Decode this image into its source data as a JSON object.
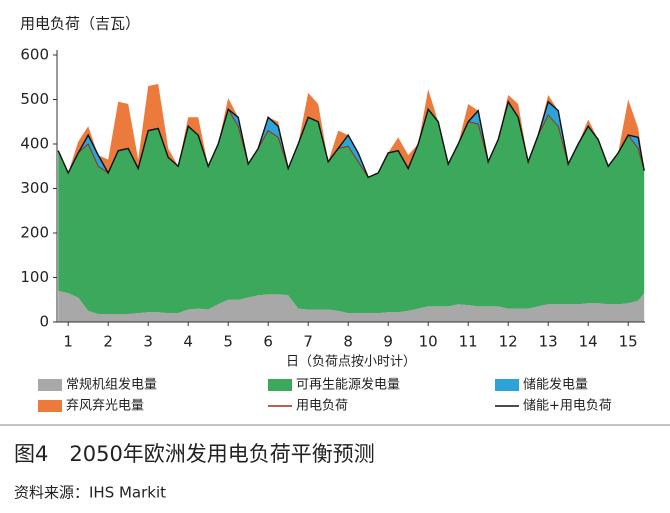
{
  "chart_data": {
    "type": "stacked_area",
    "ylabel": "用电负荷（吉瓦）",
    "xlabel": "日（负荷点按小时计）",
    "caption": "图4　2050年欧洲发用电负荷平衡预测",
    "source": "资料来源：IHS Markit",
    "xlim": [
      0.72,
      15.42
    ],
    "xticks": [
      1,
      2,
      3,
      4,
      5,
      6,
      7,
      8,
      9,
      10,
      11,
      12,
      13,
      14,
      15
    ],
    "ylim": [
      0,
      600
    ],
    "yticks": [
      0,
      100,
      200,
      300,
      400,
      500,
      600
    ],
    "x": [
      0.75,
      1,
      1.25,
      1.5,
      1.75,
      2,
      2.25,
      2.5,
      2.75,
      3,
      3.25,
      3.5,
      3.75,
      4,
      4.25,
      4.5,
      4.75,
      5,
      5.25,
      5.5,
      5.75,
      6,
      6.25,
      6.5,
      6.75,
      7,
      7.25,
      7.5,
      7.75,
      8,
      8.25,
      8.5,
      8.75,
      9,
      9.25,
      9.5,
      9.75,
      10,
      10.25,
      10.5,
      10.75,
      11,
      11.25,
      11.5,
      11.75,
      12,
      12.25,
      12.5,
      12.75,
      13,
      13.25,
      13.5,
      13.75,
      14,
      14.25,
      14.5,
      14.75,
      15,
      15.25,
      15.4
    ],
    "series": [
      {
        "name": "常规机组发电量",
        "kind": "area",
        "color": "#a8a8a8",
        "values": [
          70,
          65,
          55,
          25,
          18,
          18,
          18,
          18,
          20,
          22,
          22,
          20,
          20,
          28,
          30,
          28,
          40,
          50,
          50,
          55,
          60,
          62,
          62,
          60,
          30,
          28,
          28,
          28,
          25,
          20,
          20,
          20,
          20,
          22,
          22,
          25,
          30,
          35,
          35,
          35,
          40,
          38,
          35,
          35,
          35,
          30,
          30,
          30,
          35,
          40,
          40,
          40,
          40,
          42,
          42,
          40,
          40,
          42,
          48,
          65
        ]
      },
      {
        "name": "可再生能源发电量",
        "kind": "area",
        "color": "#3ca85c",
        "values": [
          315,
          270,
          325,
          375,
          332,
          317,
          367,
          372,
          325,
          408,
          413,
          350,
          330,
          412,
          390,
          322,
          360,
          428,
          390,
          300,
          330,
          368,
          353,
          285,
          370,
          432,
          422,
          332,
          365,
          375,
          340,
          305,
          315,
          358,
          363,
          320,
          370,
          443,
          415,
          320,
          360,
          412,
          410,
          325,
          375,
          465,
          430,
          330,
          385,
          425,
          400,
          315,
          360,
          398,
          368,
          310,
          340,
          378,
          342,
          275
        ]
      },
      {
        "name": "储能发电量",
        "kind": "area",
        "color": "#2ea3d8",
        "values": [
          0,
          0,
          0,
          20,
          25,
          0,
          0,
          0,
          0,
          0,
          0,
          0,
          0,
          0,
          0,
          0,
          0,
          0,
          20,
          0,
          0,
          30,
          25,
          0,
          0,
          0,
          0,
          0,
          0,
          25,
          20,
          0,
          0,
          0,
          0,
          0,
          0,
          0,
          0,
          0,
          0,
          0,
          30,
          0,
          0,
          0,
          0,
          0,
          0,
          30,
          35,
          0,
          0,
          0,
          0,
          0,
          0,
          0,
          25,
          0
        ]
      },
      {
        "name": "弃风弃光电量",
        "kind": "area",
        "color": "#ec7a3c",
        "values": [
          0,
          0,
          25,
          20,
          0,
          30,
          110,
          100,
          20,
          100,
          100,
          20,
          0,
          20,
          40,
          0,
          0,
          25,
          0,
          0,
          0,
          0,
          10,
          0,
          0,
          55,
          40,
          0,
          40,
          0,
          0,
          0,
          0,
          0,
          30,
          30,
          0,
          45,
          0,
          0,
          0,
          40,
          0,
          0,
          0,
          15,
          30,
          0,
          0,
          15,
          0,
          0,
          0,
          15,
          0,
          0,
          0,
          80,
          20,
          0
        ]
      },
      {
        "name": "用电负荷",
        "kind": "line",
        "color": "#9a2f1c",
        "values": [
          385,
          335,
          380,
          400,
          350,
          335,
          385,
          390,
          345,
          430,
          435,
          370,
          350,
          440,
          420,
          350,
          400,
          478,
          440,
          355,
          390,
          430,
          415,
          345,
          400,
          460,
          450,
          360,
          390,
          395,
          360,
          325,
          335,
          380,
          385,
          345,
          400,
          478,
          450,
          355,
          400,
          450,
          445,
          360,
          410,
          495,
          460,
          360,
          420,
          465,
          440,
          355,
          400,
          440,
          410,
          350,
          380,
          420,
          390,
          340
        ]
      },
      {
        "name": "储能+用电负荷",
        "kind": "line",
        "color": "#111111",
        "values": [
          385,
          335,
          380,
          420,
          375,
          335,
          385,
          390,
          345,
          430,
          435,
          370,
          350,
          440,
          420,
          350,
          400,
          478,
          460,
          355,
          390,
          460,
          440,
          345,
          400,
          460,
          450,
          360,
          390,
          420,
          380,
          325,
          335,
          380,
          385,
          345,
          400,
          478,
          450,
          355,
          400,
          450,
          475,
          360,
          410,
          495,
          460,
          360,
          420,
          495,
          475,
          355,
          400,
          440,
          410,
          350,
          380,
          420,
          415,
          340
        ]
      }
    ]
  }
}
